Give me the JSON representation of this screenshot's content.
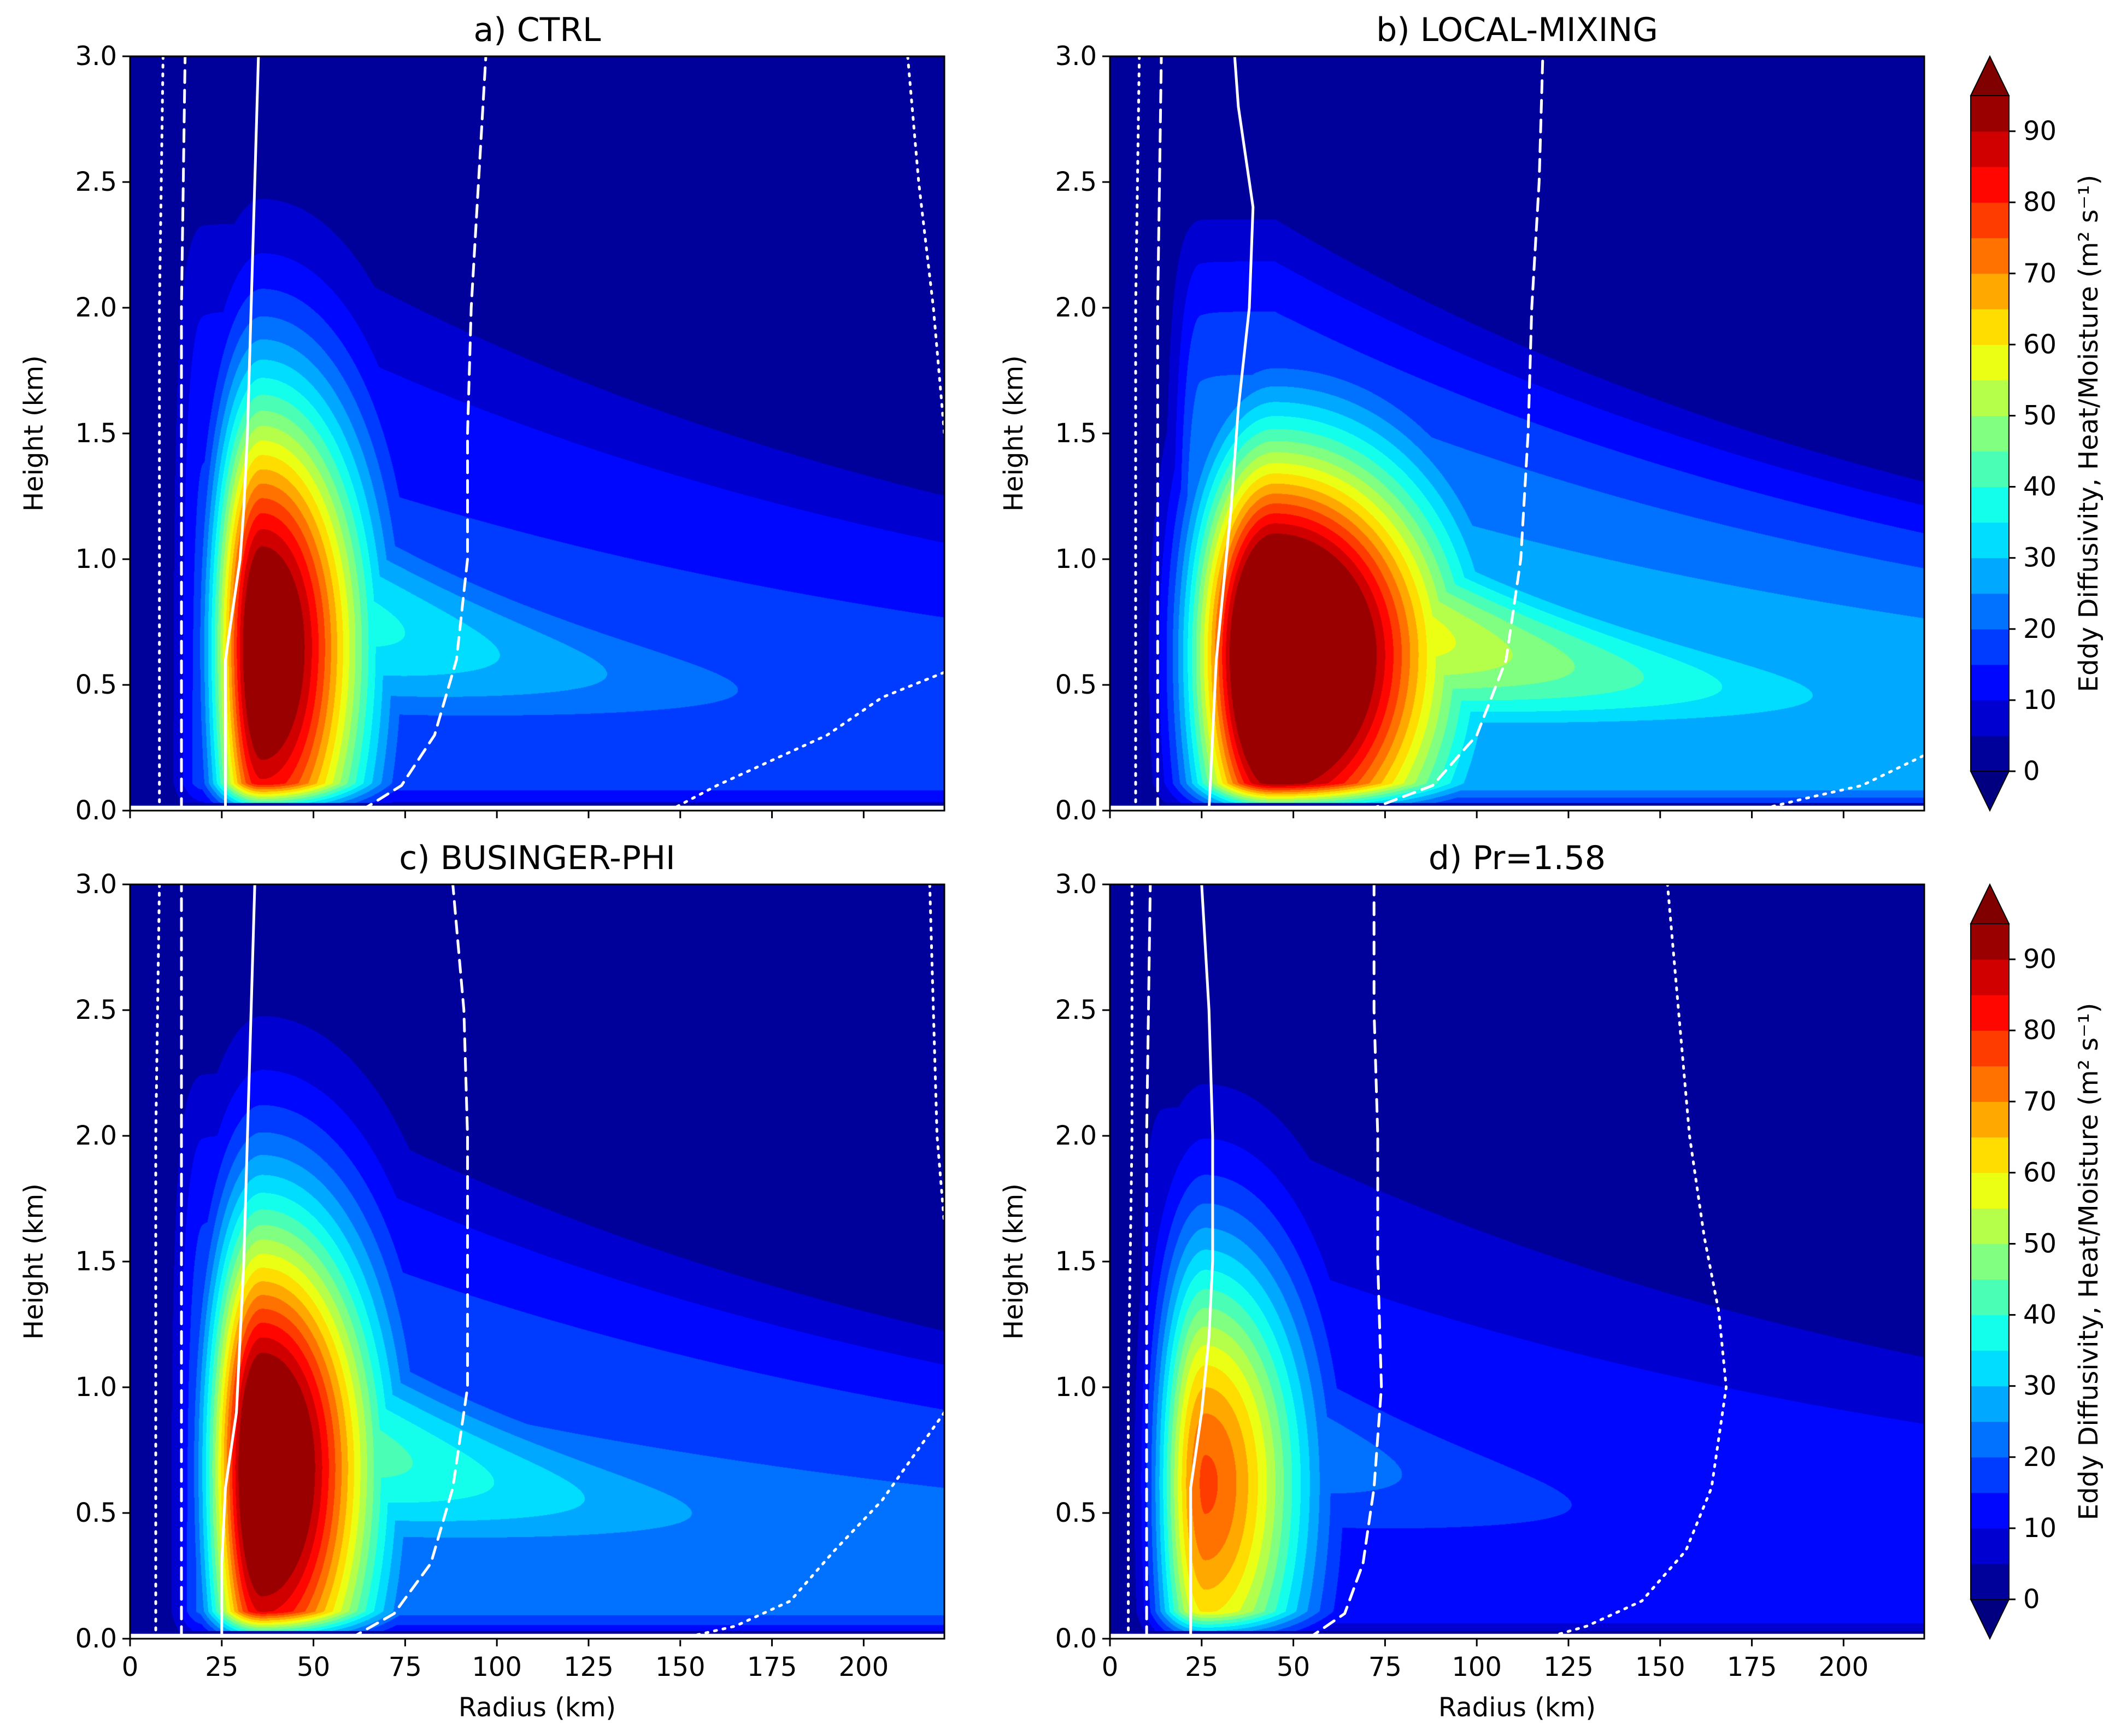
{
  "figure": {
    "colormap": "jet",
    "colors": {
      "background": "#ffffff",
      "contour_lines": "#ffffff",
      "axes": "#000000"
    }
  },
  "chart_data": [
    {
      "panel": "a",
      "title": "a) CTRL",
      "type": "heatmap",
      "xlabel": "Radius (km)",
      "ylabel": "Height (km)",
      "xlim": [
        0,
        222
      ],
      "ylim": [
        0,
        3.0
      ],
      "xticks": [
        "0",
        "25",
        "50",
        "75",
        "100",
        "125",
        "150",
        "175",
        "200"
      ],
      "yticks": [
        "0.0",
        "0.5",
        "1.0",
        "1.5",
        "2.0",
        "2.5",
        "3.0"
      ],
      "show_xticklabels": false,
      "max_center": {
        "r": 36,
        "z": 0.65
      },
      "max_value": 105,
      "core_radius": [
        11,
        0.85
      ],
      "tail_strength": 45,
      "far_level": 18,
      "top_limit": 2.05,
      "contours": {
        "solid": [
          [
            26,
            0
          ],
          [
            26,
            0.3
          ],
          [
            26,
            0.6
          ],
          [
            28,
            0.8
          ],
          [
            30,
            1.0
          ],
          [
            31,
            1.2
          ],
          [
            32,
            1.5
          ],
          [
            33,
            2.0
          ],
          [
            34,
            2.5
          ],
          [
            35,
            3.0
          ]
        ],
        "dashed_inner": [
          [
            14,
            0
          ],
          [
            14,
            1.0
          ],
          [
            14,
            2.0
          ],
          [
            15,
            3.0
          ]
        ],
        "dotted_inner": [
          [
            8,
            0
          ],
          [
            8,
            1.0
          ],
          [
            8,
            2.0
          ],
          [
            9,
            3.0
          ]
        ],
        "dashed_outer": [
          [
            63,
            0
          ],
          [
            74,
            0.1
          ],
          [
            83,
            0.3
          ],
          [
            89,
            0.6
          ],
          [
            92,
            1.0
          ],
          [
            92,
            1.5
          ],
          [
            93,
            2.0
          ],
          [
            95,
            2.5
          ],
          [
            97,
            3.0
          ]
        ],
        "dotted_outer": [
          [
            147,
            0
          ],
          [
            160,
            0.1
          ],
          [
            175,
            0.2
          ],
          [
            190,
            0.3
          ],
          [
            205,
            0.45
          ],
          [
            222,
            0.55
          ]
        ],
        "dotted_right": [
          [
            212,
            3.0
          ],
          [
            215,
            2.5
          ],
          [
            219,
            2.0
          ],
          [
            222,
            1.5
          ]
        ]
      }
    },
    {
      "panel": "b",
      "title": "b) LOCAL-MIXING",
      "type": "heatmap",
      "xlabel": "Radius (km)",
      "ylabel": "Height (km)",
      "xlim": [
        0,
        222
      ],
      "ylim": [
        0,
        3.0
      ],
      "xticks": [
        "0",
        "25",
        "50",
        "75",
        "100",
        "125",
        "150",
        "175",
        "200"
      ],
      "yticks": [
        "0.0",
        "0.5",
        "1.0",
        "1.5",
        "2.0",
        "2.5",
        "3.0"
      ],
      "show_xticklabels": false,
      "max_center": {
        "r": 45,
        "z": 0.62
      },
      "max_value": 125,
      "core_radius": [
        18,
        0.7
      ],
      "tail_strength": 75,
      "far_level": 30,
      "top_limit": 1.95,
      "contours": {
        "solid": [
          [
            27,
            0
          ],
          [
            28,
            0.3
          ],
          [
            29,
            0.6
          ],
          [
            31,
            0.9
          ],
          [
            33,
            1.2
          ],
          [
            35,
            1.6
          ],
          [
            38,
            2.0
          ],
          [
            39,
            2.4
          ],
          [
            35,
            2.8
          ],
          [
            34,
            3.0
          ]
        ],
        "dashed_inner": [
          [
            13,
            0
          ],
          [
            13,
            1.0
          ],
          [
            13,
            2.0
          ],
          [
            14,
            3.0
          ]
        ],
        "dotted_inner": [
          [
            7,
            0
          ],
          [
            7,
            1.0
          ],
          [
            7,
            2.0
          ],
          [
            8,
            3.0
          ]
        ],
        "dashed_outer": [
          [
            70,
            0
          ],
          [
            88,
            0.1
          ],
          [
            100,
            0.3
          ],
          [
            108,
            0.6
          ],
          [
            112,
            1.0
          ],
          [
            114,
            1.5
          ],
          [
            115,
            2.0
          ],
          [
            117,
            2.5
          ],
          [
            118,
            3.0
          ]
        ],
        "dotted_outer": [
          [
            176,
            0
          ],
          [
            190,
            0.05
          ],
          [
            205,
            0.1
          ],
          [
            222,
            0.22
          ]
        ]
      }
    },
    {
      "panel": "c",
      "title": "c) BUSINGER-PHI",
      "type": "heatmap",
      "xlabel": "Radius (km)",
      "ylabel": "Height (km)",
      "xlim": [
        0,
        222
      ],
      "ylim": [
        0,
        3.0
      ],
      "xticks": [
        "0",
        "25",
        "50",
        "75",
        "100",
        "125",
        "150",
        "175",
        "200"
      ],
      "yticks": [
        "0.0",
        "0.5",
        "1.0",
        "1.5",
        "2.0",
        "2.5",
        "3.0"
      ],
      "show_xticklabels": true,
      "max_center": {
        "r": 36,
        "z": 0.68
      },
      "max_value": 110,
      "core_radius": [
        12,
        0.85
      ],
      "tail_strength": 52,
      "far_level": 22,
      "top_limit": 1.9,
      "contours": {
        "solid": [
          [
            25,
            0
          ],
          [
            25,
            0.3
          ],
          [
            26,
            0.6
          ],
          [
            29,
            0.9
          ],
          [
            30,
            1.2
          ],
          [
            31,
            1.5
          ],
          [
            32,
            2.0
          ],
          [
            33,
            2.5
          ],
          [
            34,
            3.0
          ]
        ],
        "dashed_inner": [
          [
            14,
            0
          ],
          [
            14,
            1.0
          ],
          [
            14,
            2.0
          ],
          [
            14,
            3.0
          ]
        ],
        "dotted_inner": [
          [
            7,
            0
          ],
          [
            7,
            1.0
          ],
          [
            7,
            2.0
          ],
          [
            8,
            3.0
          ]
        ],
        "dashed_outer": [
          [
            60,
            0
          ],
          [
            72,
            0.1
          ],
          [
            82,
            0.3
          ],
          [
            88,
            0.6
          ],
          [
            92,
            1.0
          ],
          [
            92,
            1.5
          ],
          [
            92,
            2.0
          ],
          [
            91,
            2.5
          ],
          [
            88,
            3.0
          ]
        ],
        "dotted_outer": [
          [
            150,
            0
          ],
          [
            165,
            0.05
          ],
          [
            180,
            0.15
          ],
          [
            192,
            0.35
          ],
          [
            205,
            0.55
          ],
          [
            222,
            0.9
          ]
        ],
        "dotted_right": [
          [
            218,
            3.0
          ],
          [
            219,
            2.5
          ],
          [
            220,
            2.0
          ],
          [
            222,
            1.65
          ]
        ]
      }
    },
    {
      "panel": "d",
      "title": "d) Pr=1.58",
      "type": "heatmap",
      "xlabel": "Radius (km)",
      "ylabel": "Height (km)",
      "xlim": [
        0,
        222
      ],
      "ylim": [
        0,
        3.0
      ],
      "xticks": [
        "0",
        "25",
        "50",
        "75",
        "100",
        "125",
        "150",
        "175",
        "200"
      ],
      "yticks": [
        "0.0",
        "0.5",
        "1.0",
        "1.5",
        "2.0",
        "2.5",
        "3.0"
      ],
      "show_xticklabels": true,
      "max_center": {
        "r": 26,
        "z": 0.62
      },
      "max_value": 76,
      "core_radius": [
        11,
        0.8
      ],
      "tail_strength": 28,
      "far_level": 14,
      "top_limit": 1.9,
      "contours": {
        "solid": [
          [
            22,
            0
          ],
          [
            22,
            0.3
          ],
          [
            22,
            0.6
          ],
          [
            25,
            0.9
          ],
          [
            27,
            1.2
          ],
          [
            28,
            1.5
          ],
          [
            28,
            2.0
          ],
          [
            27,
            2.5
          ],
          [
            25,
            3.0
          ]
        ],
        "dashed_inner": [
          [
            10,
            0
          ],
          [
            10,
            1.0
          ],
          [
            10,
            2.0
          ],
          [
            11,
            3.0
          ]
        ],
        "dotted_inner": [
          [
            5,
            0
          ],
          [
            5,
            1.0
          ],
          [
            6,
            2.0
          ],
          [
            6,
            3.0
          ]
        ],
        "dashed_outer": [
          [
            54,
            0
          ],
          [
            64,
            0.1
          ],
          [
            69,
            0.3
          ],
          [
            72,
            0.6
          ],
          [
            74,
            1.0
          ],
          [
            73,
            1.5
          ],
          [
            73,
            2.0
          ],
          [
            72,
            2.5
          ],
          [
            72,
            3.0
          ]
        ],
        "dotted_outer": [
          [
            118,
            0
          ],
          [
            130,
            0.05
          ],
          [
            145,
            0.15
          ],
          [
            157,
            0.35
          ],
          [
            164,
            0.6
          ],
          [
            168,
            1.0
          ],
          [
            166,
            1.3
          ],
          [
            162,
            1.6
          ],
          [
            158,
            2.0
          ],
          [
            155,
            2.5
          ],
          [
            152,
            3.0
          ]
        ]
      }
    }
  ],
  "colorbar": {
    "label": "Eddy Diffusivity, Heat/Moisture (m² s⁻¹)",
    "min": 0,
    "max": 95,
    "ticks": [
      "0",
      "10",
      "20",
      "30",
      "40",
      "50",
      "60",
      "70",
      "80",
      "90"
    ],
    "extend": "both"
  }
}
